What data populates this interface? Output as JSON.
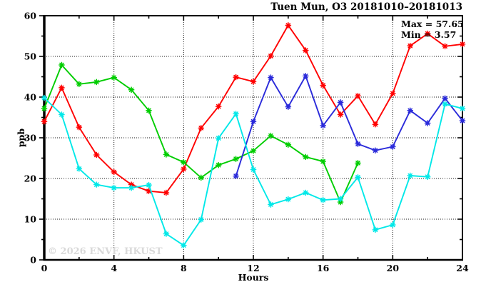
{
  "window": {
    "title": "Tuen Mun, O3 20181010–20181013"
  },
  "watermark": "© 2026 ENVF, HKUST",
  "chart_data": {
    "type": "line",
    "title": "Tuen Mun, O3 20181010–20181013",
    "xlabel": "Hours",
    "ylabel": "ppb",
    "xlim": [
      0,
      24
    ],
    "ylim": [
      0,
      60
    ],
    "x_major_ticks": [
      0,
      4,
      8,
      12,
      16,
      20,
      24
    ],
    "x_minor_ticks": [
      2,
      6,
      10,
      14,
      18,
      22
    ],
    "y_major_ticks": [
      0,
      10,
      20,
      30,
      40,
      50,
      60
    ],
    "y_minor_ticks": [
      5,
      15,
      25,
      35,
      45,
      55
    ],
    "x_gridlines": [
      4,
      8,
      12,
      16,
      20
    ],
    "y_gridlines": [
      10,
      20,
      30,
      40,
      50
    ],
    "grid_style": "dotted",
    "legend": {
      "position": "top-right",
      "lines": [
        "Max = 57.65",
        "Min = 3.57"
      ]
    },
    "max": 57.65,
    "min": 3.57,
    "x": [
      0,
      1,
      2,
      3,
      4,
      5,
      6,
      7,
      8,
      9,
      10,
      11,
      12,
      13,
      14,
      15,
      16,
      17,
      18,
      19,
      20,
      21,
      22,
      23,
      24
    ],
    "marker": "asterisk",
    "series": [
      {
        "name": "day-1-red",
        "color": "#ff0000",
        "values": [
          34.0,
          42.3,
          32.6,
          25.8,
          21.6,
          18.5,
          16.9,
          16.5,
          22.3,
          32.4,
          37.7,
          44.9,
          43.8,
          50.1,
          57.65,
          51.5,
          42.9,
          35.7,
          40.3,
          33.3,
          40.9,
          52.6,
          55.6,
          52.5,
          53.0
        ]
      },
      {
        "name": "day-2-green",
        "color": "#00cd00",
        "values": [
          37.2,
          47.9,
          43.2,
          43.7,
          44.8,
          41.8,
          36.7,
          25.9,
          24.0,
          20.2,
          23.3,
          24.8,
          26.8,
          30.5,
          28.3,
          25.3,
          24.2,
          14.2,
          23.8,
          null,
          null,
          null,
          null,
          null,
          null
        ]
      },
      {
        "name": "day-3-blue",
        "color": "#2a2ada",
        "values": [
          null,
          null,
          null,
          null,
          null,
          null,
          null,
          null,
          null,
          null,
          null,
          20.6,
          34.0,
          44.8,
          37.6,
          45.2,
          33.0,
          38.7,
          28.5,
          26.9,
          27.8,
          36.7,
          33.6,
          39.7,
          34.2
        ]
      },
      {
        "name": "day-4-cyan",
        "color": "#00e8e8",
        "values": [
          39.8,
          35.7,
          22.4,
          18.5,
          17.7,
          17.7,
          18.4,
          6.4,
          3.57,
          9.9,
          29.9,
          35.9,
          22.2,
          13.6,
          14.9,
          16.5,
          14.7,
          15.0,
          20.3,
          7.4,
          8.6,
          20.7,
          20.4,
          38.3,
          37.2
        ]
      }
    ]
  }
}
